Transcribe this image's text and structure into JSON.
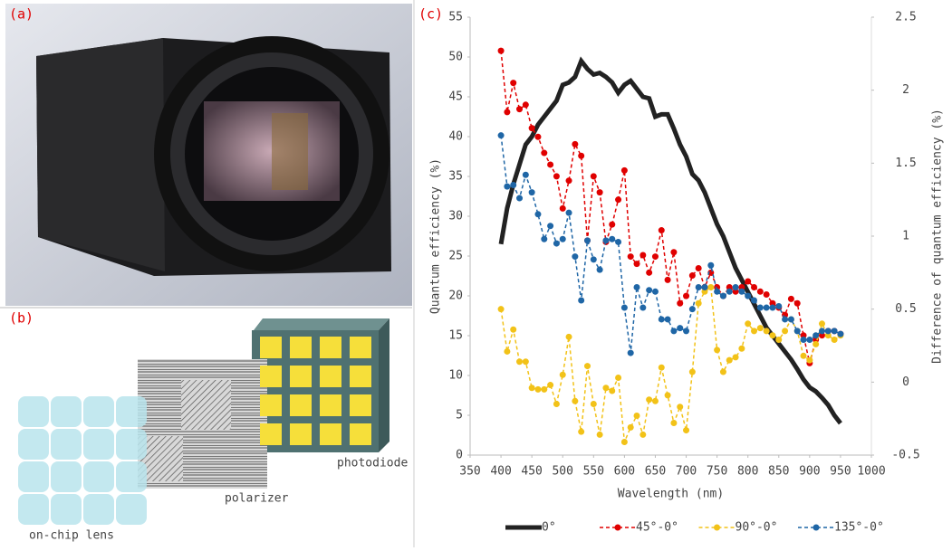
{
  "panels": {
    "a": "(a)",
    "b": "(b)",
    "c": "(c)"
  },
  "diagram": {
    "photodiode": "photodiode",
    "polarizer": "polarizer",
    "lens": "on-chip lens"
  },
  "chart_data": {
    "type": "line",
    "xlabel": "Wavelength (nm)",
    "ylabel": "Quantum efficiency (%)",
    "y2label": "Difference of quantum efficiency (%)",
    "xlim": [
      350,
      1000
    ],
    "xticks": [
      350,
      400,
      450,
      500,
      550,
      600,
      650,
      700,
      750,
      800,
      850,
      900,
      950,
      1000
    ],
    "ylim": [
      0,
      55
    ],
    "yticks": [
      0,
      5,
      10,
      15,
      20,
      25,
      30,
      35,
      40,
      45,
      50,
      55
    ],
    "y2lim": [
      -0.5,
      2.5
    ],
    "y2ticks": [
      -0.5,
      0,
      0.5,
      1,
      1.5,
      2,
      2.5
    ],
    "grid": false,
    "legend": "bottom",
    "x": [
      400,
      410,
      420,
      430,
      440,
      450,
      460,
      470,
      480,
      490,
      500,
      510,
      520,
      530,
      540,
      550,
      560,
      570,
      580,
      590,
      600,
      610,
      620,
      630,
      640,
      650,
      660,
      670,
      680,
      690,
      700,
      710,
      720,
      730,
      740,
      750,
      760,
      770,
      780,
      790,
      800,
      810,
      820,
      830,
      840,
      850,
      860,
      870,
      880,
      890,
      900,
      910,
      920,
      930,
      940,
      950
    ],
    "series": [
      {
        "name": "0°",
        "color": "#222222",
        "dash": false,
        "markers": false,
        "values": [
          26.5,
          31,
          34,
          36.5,
          39,
          40,
          41.5,
          42.5,
          43.5,
          44.5,
          46.5,
          46.8,
          47.5,
          49.5,
          48.5,
          47.8,
          48,
          47.5,
          46.8,
          45.5,
          46.5,
          47,
          46,
          45,
          44.8,
          42.5,
          42.8,
          42.8,
          41,
          39,
          37.5,
          35.3,
          34.5,
          33,
          31,
          29,
          27.5,
          25.5,
          23.5,
          22,
          20.5,
          19,
          17.5,
          16,
          15,
          14,
          13,
          12,
          10.8,
          9.5,
          8.5,
          8,
          7.2,
          6.3,
          5,
          4
        ]
      },
      {
        "name": "45°-0°",
        "color": "#e00000",
        "dash": true,
        "markers": true,
        "axis": "y2",
        "values": [
          2.27,
          1.85,
          2.05,
          1.87,
          1.9,
          1.74,
          1.68,
          1.57,
          1.49,
          1.41,
          1.19,
          1.38,
          1.63,
          1.55,
          0.97,
          1.41,
          1.3,
          0.96,
          1.08,
          1.25,
          1.45,
          0.86,
          0.81,
          0.87,
          0.75,
          0.86,
          1.04,
          0.7,
          0.89,
          0.54,
          0.59,
          0.73,
          0.78,
          0.65,
          0.75,
          0.65,
          0.59,
          0.65,
          0.62,
          0.65,
          0.69,
          0.65,
          0.62,
          0.6,
          0.54,
          0.51,
          0.46,
          0.57,
          0.54,
          0.32,
          0.13,
          0.29,
          0.32,
          0.35,
          0.35,
          0.33
        ]
      },
      {
        "name": "90°-0°",
        "color": "#f2c218",
        "dash": true,
        "markers": true,
        "axis": "y2",
        "values": [
          0.5,
          0.21,
          0.36,
          0.14,
          0.14,
          -0.04,
          -0.05,
          -0.05,
          -0.02,
          -0.15,
          0.05,
          0.31,
          -0.13,
          -0.34,
          0.11,
          -0.15,
          -0.36,
          -0.04,
          -0.06,
          0.03,
          -0.41,
          -0.31,
          -0.23,
          -0.36,
          -0.12,
          -0.13,
          0.1,
          -0.09,
          -0.28,
          -0.17,
          -0.33,
          0.07,
          0.54,
          0.62,
          0.65,
          0.22,
          0.07,
          0.15,
          0.17,
          0.23,
          0.4,
          0.35,
          0.37,
          0.35,
          0.32,
          0.29,
          0.35,
          0.43,
          0.35,
          0.18,
          0.15,
          0.26,
          0.4,
          0.32,
          0.29,
          0.32
        ]
      },
      {
        "name": "135°-0°",
        "color": "#1f66a6",
        "dash": true,
        "markers": true,
        "axis": "y2",
        "values": [
          1.69,
          1.34,
          1.35,
          1.26,
          1.42,
          1.3,
          1.15,
          0.98,
          1.07,
          0.95,
          0.98,
          1.16,
          0.86,
          0.56,
          0.97,
          0.84,
          0.77,
          0.97,
          0.98,
          0.96,
          0.51,
          0.2,
          0.65,
          0.51,
          0.63,
          0.62,
          0.43,
          0.43,
          0.35,
          0.37,
          0.35,
          0.5,
          0.65,
          0.65,
          0.8,
          0.62,
          0.59,
          0.62,
          0.65,
          0.62,
          0.59,
          0.56,
          0.51,
          0.51,
          0.51,
          0.52,
          0.43,
          0.43,
          0.35,
          0.29,
          0.29,
          0.32,
          0.35,
          0.35,
          0.35,
          0.33
        ]
      }
    ]
  }
}
